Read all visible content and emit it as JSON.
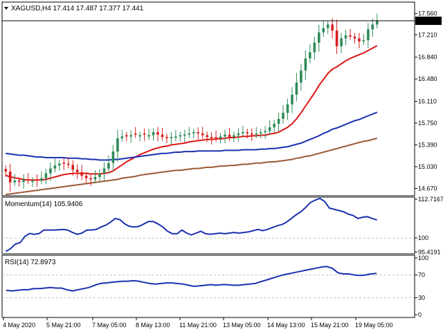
{
  "window": {
    "header": "XAGUSD,H4  17.414 17.487 17.377 17.441",
    "colors": {
      "bull": "#2e8b57",
      "bear": "#d81e1e",
      "ma_fast": "#e01515",
      "ma_mid": "#1a2fb0",
      "ma_slow": "#9a5a32",
      "indicator": "#1a2fb0",
      "grid": "#c0c0c0"
    }
  },
  "chart_data": [
    {
      "type": "candlestick",
      "title": "XAGUSD,H4  17.414 17.487 17.377 17.441",
      "ylim": [
        14.55,
        17.75
      ],
      "y_ticks": [
        "17.560",
        "17.210",
        "16.840",
        "16.480",
        "16.110",
        "15.750",
        "15.390",
        "15.030",
        "14.670"
      ],
      "current_price": "17.441",
      "x_ticks": [
        "4 May 2020",
        "5 May 21:00",
        "7 May 05:00",
        "8 May 13:00",
        "11 May 21:00",
        "13 May 05:00",
        "14 May 13:00",
        "15 May 21:00",
        "19 May 05:00"
      ],
      "closes": [
        14.95,
        14.77,
        14.8,
        14.78,
        14.82,
        14.8,
        14.8,
        14.8,
        14.84,
        14.92,
        15.0,
        15.05,
        15.08,
        15.08,
        15.06,
        14.98,
        14.94,
        14.88,
        14.84,
        14.82,
        14.86,
        14.92,
        15.0,
        15.09,
        15.28,
        15.5,
        15.53,
        15.53,
        15.55,
        15.56,
        15.55,
        15.56,
        15.55,
        15.6,
        15.56,
        15.52,
        15.5,
        15.52,
        15.53,
        15.55,
        15.56,
        15.58,
        15.6,
        15.58,
        15.55,
        15.52,
        15.5,
        15.5,
        15.53,
        15.56,
        15.52,
        15.55,
        15.58,
        15.6,
        15.58,
        15.56,
        15.58,
        15.6,
        15.62,
        15.68,
        15.74,
        15.82,
        15.92,
        16.06,
        16.22,
        16.42,
        16.62,
        16.82,
        16.92,
        17.08,
        17.25,
        17.32,
        17.38,
        17.28,
        17.02,
        17.15,
        17.2,
        17.18,
        17.15,
        17.1,
        17.12,
        17.3,
        17.38,
        17.44
      ],
      "ma_fast": [
        14.89,
        14.86,
        14.85,
        14.83,
        14.82,
        14.81,
        14.81,
        14.81,
        14.81,
        14.82,
        14.84,
        14.86,
        14.88,
        14.9,
        14.91,
        14.92,
        14.92,
        14.92,
        14.92,
        14.91,
        14.91,
        14.91,
        14.92,
        14.93,
        14.96,
        15.01,
        15.06,
        15.11,
        15.15,
        15.19,
        15.23,
        15.26,
        15.29,
        15.32,
        15.34,
        15.36,
        15.37,
        15.39,
        15.4,
        15.41,
        15.42,
        15.44,
        15.45,
        15.46,
        15.47,
        15.48,
        15.48,
        15.49,
        15.49,
        15.5,
        15.51,
        15.51,
        15.52,
        15.53,
        15.53,
        15.54,
        15.54,
        15.55,
        15.55,
        15.57,
        15.58,
        15.6,
        15.64,
        15.68,
        15.74,
        15.82,
        15.92,
        16.03,
        16.14,
        16.25,
        16.37,
        16.47,
        16.57,
        16.64,
        16.68,
        16.73,
        16.78,
        16.82,
        16.85,
        16.88,
        16.91,
        16.95,
        16.99,
        17.03
      ],
      "ma_mid": [
        15.25,
        15.24,
        15.23,
        15.22,
        15.22,
        15.21,
        15.2,
        15.19,
        15.19,
        15.18,
        15.18,
        15.18,
        15.18,
        15.18,
        15.17,
        15.17,
        15.17,
        15.16,
        15.16,
        15.15,
        15.15,
        15.14,
        15.14,
        15.14,
        15.15,
        15.15,
        15.16,
        15.17,
        15.18,
        15.19,
        15.2,
        15.21,
        15.22,
        15.23,
        15.24,
        15.25,
        15.25,
        15.26,
        15.27,
        15.27,
        15.28,
        15.28,
        15.28,
        15.29,
        15.29,
        15.29,
        15.29,
        15.29,
        15.29,
        15.3,
        15.3,
        15.3,
        15.3,
        15.31,
        15.31,
        15.31,
        15.31,
        15.32,
        15.32,
        15.33,
        15.33,
        15.34,
        15.35,
        15.36,
        15.38,
        15.4,
        15.42,
        15.45,
        15.48,
        15.51,
        15.54,
        15.58,
        15.61,
        15.65,
        15.67,
        15.7,
        15.73,
        15.76,
        15.79,
        15.81,
        15.84,
        15.87,
        15.9,
        15.93
      ],
      "ma_slow": [
        14.57,
        14.58,
        14.59,
        14.6,
        14.61,
        14.62,
        14.63,
        14.64,
        14.65,
        14.66,
        14.67,
        14.68,
        14.69,
        14.7,
        14.71,
        14.72,
        14.73,
        14.74,
        14.75,
        14.76,
        14.77,
        14.78,
        14.79,
        14.8,
        14.81,
        14.82,
        14.84,
        14.85,
        14.86,
        14.87,
        14.89,
        14.9,
        14.91,
        14.92,
        14.93,
        14.94,
        14.95,
        14.96,
        14.97,
        14.97,
        14.98,
        14.99,
        15.0,
        15.0,
        15.01,
        15.02,
        15.02,
        15.03,
        15.04,
        15.04,
        15.05,
        15.05,
        15.06,
        15.07,
        15.07,
        15.08,
        15.09,
        15.09,
        15.1,
        15.11,
        15.11,
        15.12,
        15.13,
        15.14,
        15.15,
        15.17,
        15.18,
        15.2,
        15.21,
        15.23,
        15.25,
        15.27,
        15.29,
        15.31,
        15.33,
        15.35,
        15.37,
        15.39,
        15.41,
        15.43,
        15.45,
        15.46,
        15.48,
        15.5
      ]
    },
    {
      "type": "line",
      "title": "Momentum(14) 105.9406",
      "ylim": [
        94.8,
        113.4
      ],
      "y_ticks": [
        "112.7167",
        "100",
        "95.4191"
      ],
      "values": [
        95.6,
        96.5,
        98.0,
        98.5,
        100.5,
        101.5,
        101.2,
        101.5,
        102.6,
        102.6,
        102.6,
        102.7,
        102.8,
        102.6,
        101.8,
        101.2,
        101.6,
        102.6,
        102.6,
        102.8,
        103.6,
        104.2,
        105.2,
        106.4,
        106.0,
        104.6,
        103.8,
        103.6,
        103.8,
        104.6,
        105.4,
        105.4,
        104.6,
        103.6,
        102.2,
        101.4,
        101.4,
        102.6,
        101.6,
        101.0,
        101.6,
        102.2,
        101.4,
        101.2,
        101.4,
        101.6,
        101.4,
        101.6,
        101.8,
        101.6,
        101.8,
        102.0,
        102.4,
        102.8,
        102.4,
        102.8,
        103.4,
        104.0,
        104.4,
        105.2,
        106.4,
        107.6,
        108.6,
        110.0,
        111.6,
        112.4,
        113.0,
        112.0,
        109.8,
        109.4,
        109.0,
        108.6,
        107.8,
        107.4,
        106.4,
        106.8,
        107.0,
        106.4,
        105.94
      ]
    },
    {
      "type": "line",
      "title": "RSI(14) 72.8973",
      "ylim": [
        0,
        100
      ],
      "y_ticks": [
        "100",
        "70",
        "30",
        "0"
      ],
      "values": [
        43,
        42,
        43,
        44,
        44,
        46,
        46,
        47,
        48,
        47,
        47,
        44,
        42,
        44,
        46,
        48,
        52,
        55,
        56,
        57,
        58,
        59,
        59,
        60,
        59,
        57,
        55,
        54,
        55,
        56,
        56,
        55,
        54,
        52,
        50,
        51,
        52,
        53,
        52,
        53,
        53,
        52,
        52,
        53,
        54,
        55,
        58,
        61,
        64,
        67,
        70,
        72,
        74,
        76,
        78,
        80,
        82,
        84,
        85,
        82,
        74,
        72,
        72,
        70,
        69,
        70,
        72,
        72.9
      ]
    }
  ]
}
